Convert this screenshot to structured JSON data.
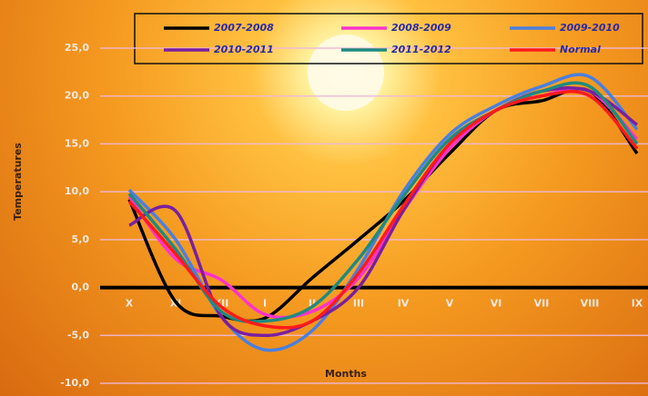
{
  "chart_data": {
    "type": "line",
    "x_label": "Months",
    "y_label": "Temperatures",
    "categories": [
      "X",
      "XI",
      "XII",
      "I",
      "II",
      "III",
      "IV",
      "V",
      "VI",
      "VII",
      "VIII",
      "IX"
    ],
    "ylim": [
      -10,
      25
    ],
    "yticks": [
      {
        "value": -10,
        "label": "-10,0"
      },
      {
        "value": -5,
        "label": "-5,0"
      },
      {
        "value": 0,
        "label": "0,0"
      },
      {
        "value": 5,
        "label": "5,0"
      },
      {
        "value": 10,
        "label": "10,0"
      },
      {
        "value": 15,
        "label": "15,0"
      },
      {
        "value": 20,
        "label": "20,0"
      },
      {
        "value": 25,
        "label": "25,0"
      }
    ],
    "grid": true,
    "series": [
      {
        "name": "2007-2008",
        "color": "#000000",
        "values": [
          9.2,
          -1.5,
          -3,
          -3.2,
          1,
          5,
          9,
          14,
          18.5,
          19.5,
          20.5,
          14
        ]
      },
      {
        "name": "2008-2009",
        "color": "#ff33cc",
        "values": [
          9.5,
          3,
          0.8,
          -2.8,
          -2.5,
          1,
          8,
          14.5,
          18.5,
          20,
          20.5,
          15.5
        ]
      },
      {
        "name": "2009-2010",
        "color": "#4a7fe0",
        "values": [
          10.2,
          5,
          -3,
          -6.5,
          -4.5,
          2,
          10,
          16,
          19,
          21,
          22,
          16.5
        ]
      },
      {
        "name": "2010-2011",
        "color": "#7a1fa0",
        "values": [
          6.5,
          8,
          -3,
          -5,
          -3.5,
          0,
          8,
          15,
          18.5,
          20.5,
          20.5,
          17
        ]
      },
      {
        "name": "2011-2012",
        "color": "#1f8a80",
        "values": [
          9.8,
          4,
          -2.5,
          -3.5,
          -2,
          3,
          9.5,
          15.5,
          18.5,
          20.5,
          21,
          15
        ]
      },
      {
        "name": "Normal",
        "color": "#ff1a1a",
        "values": [
          9,
          3.5,
          -2,
          -4,
          -3.5,
          1.5,
          8.5,
          15,
          18.5,
          20,
          20,
          14.5
        ]
      }
    ]
  }
}
